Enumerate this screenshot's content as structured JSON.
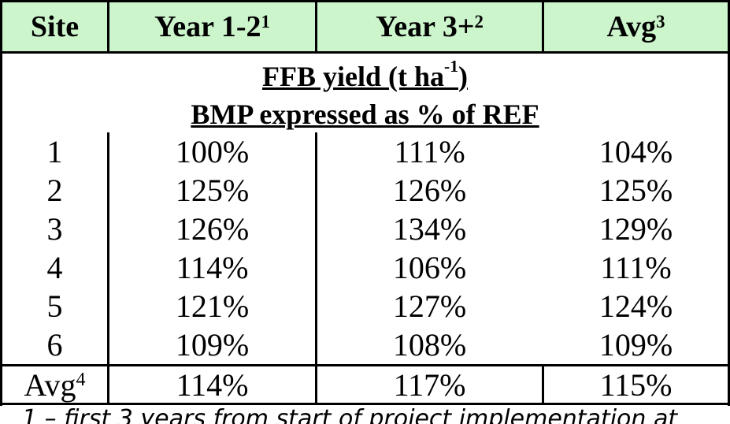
{
  "header": [
    {
      "text": "Site"
    },
    {
      "text": "Year 1-2",
      "sup": "1"
    },
    {
      "text": "Year 3+",
      "sup": "2"
    },
    {
      "text": "Avg",
      "sup": "3"
    }
  ],
  "subtitle": {
    "line1": {
      "before": "FFB yield (t ha",
      "sup": "-1",
      "after": ")"
    },
    "line2": "BMP expressed as % of REF"
  },
  "rows": [
    [
      "1",
      "100%",
      "111%",
      "104%"
    ],
    [
      "2",
      "125%",
      "126%",
      "125%"
    ],
    [
      "3",
      "126%",
      "134%",
      "129%"
    ],
    [
      "4",
      "114%",
      "106%",
      "111%"
    ],
    [
      "5",
      "121%",
      "127%",
      "124%"
    ],
    [
      "6",
      "109%",
      "108%",
      "109%"
    ]
  ],
  "average_row": {
    "label": "Avg",
    "sup": "4",
    "values": [
      "114%",
      "117%",
      "115%"
    ]
  },
  "footnote": "1 – first 3 years from start of project implementation at"
}
